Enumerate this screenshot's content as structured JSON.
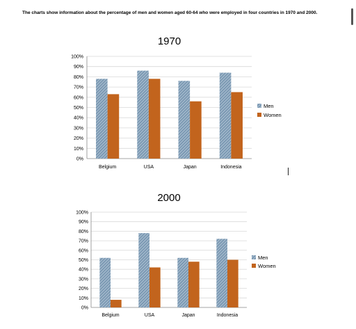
{
  "caption": "The charts show information about the percentage of men and women aged 60-64 who were employed in four countries in 1970 and 2000.",
  "colors": {
    "men_fill": "#9db4c8",
    "men_hatch": "#4f7597",
    "women": "#c2641d",
    "grid": "#d9d9d9",
    "axis": "#888888"
  },
  "chart_data": [
    {
      "type": "bar",
      "title": "1970",
      "categories": [
        "Belgium",
        "USA",
        "Japan",
        "Indonesia"
      ],
      "series": [
        {
          "name": "Men",
          "values": [
            78,
            86,
            76,
            84
          ]
        },
        {
          "name": "Women",
          "values": [
            63,
            78,
            56,
            65
          ]
        }
      ],
      "ylim": [
        0,
        100
      ],
      "yticks": [
        "0%",
        "10%",
        "20%",
        "30%",
        "40%",
        "50%",
        "60%",
        "70%",
        "80%",
        "90%",
        "100%"
      ],
      "grid": true,
      "legend": "right"
    },
    {
      "type": "bar",
      "title": "2000",
      "categories": [
        "Belgium",
        "USA",
        "Japan",
        "Indonesia"
      ],
      "series": [
        {
          "name": "Men",
          "values": [
            52,
            78,
            52,
            72
          ]
        },
        {
          "name": "Women",
          "values": [
            8,
            42,
            48,
            50
          ]
        }
      ],
      "ylim": [
        0,
        100
      ],
      "yticks": [
        "0%",
        "10%",
        "20%",
        "30%",
        "40%",
        "50%",
        "60%",
        "70%",
        "80%",
        "90%",
        "100%"
      ],
      "grid": true,
      "legend": "right"
    }
  ]
}
